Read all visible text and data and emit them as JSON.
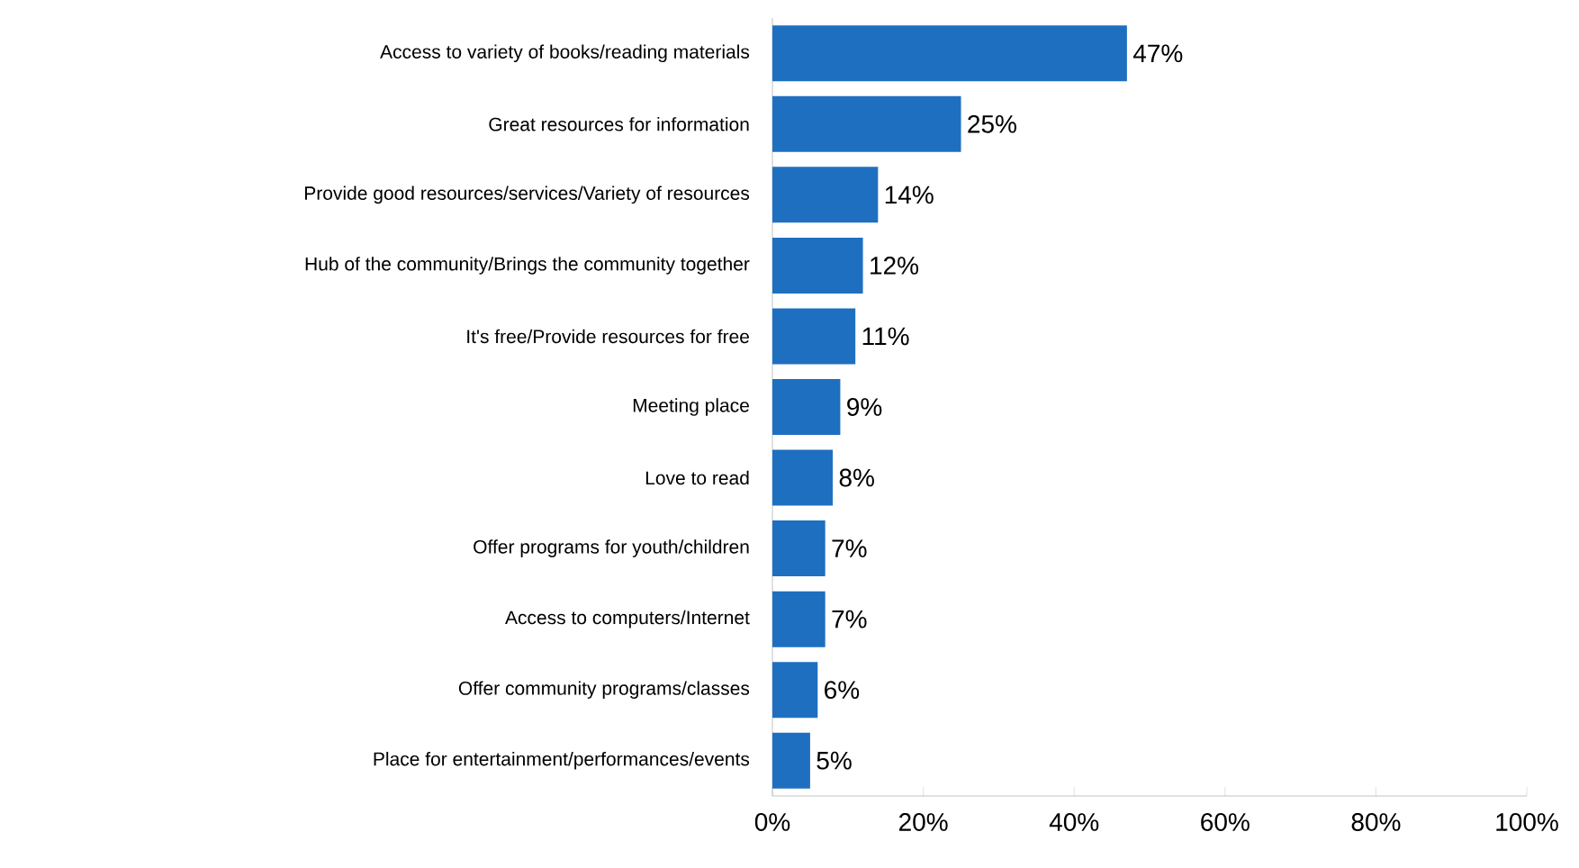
{
  "chart_data": {
    "type": "bar",
    "orientation": "horizontal",
    "color": "#1f6fc0",
    "categories": [
      "Access to variety of books/reading materials",
      "Great resources for information",
      "Provide good resources/services/Variety of resources",
      "Hub of the community/Brings the community together",
      "It's free/Provide resources for free",
      "Meeting place",
      "Love to read",
      "Offer programs for youth/children",
      "Access to computers/Internet",
      "Offer community programs/classes",
      "Place for entertainment/performances/events"
    ],
    "values": [
      47,
      25,
      14,
      12,
      11,
      9,
      8,
      7,
      7,
      6,
      5
    ],
    "value_labels": [
      "47%",
      "25%",
      "14%",
      "12%",
      "11%",
      "9%",
      "8%",
      "7%",
      "7%",
      "6%",
      "5%"
    ],
    "xlim": [
      0,
      100
    ],
    "xticks": [
      {
        "value": 0,
        "label": "0%"
      },
      {
        "value": 20,
        "label": "20%"
      },
      {
        "value": 40,
        "label": "40%"
      },
      {
        "value": 60,
        "label": "60%"
      },
      {
        "value": 80,
        "label": "80%"
      },
      {
        "value": 100,
        "label": "100%"
      }
    ]
  }
}
